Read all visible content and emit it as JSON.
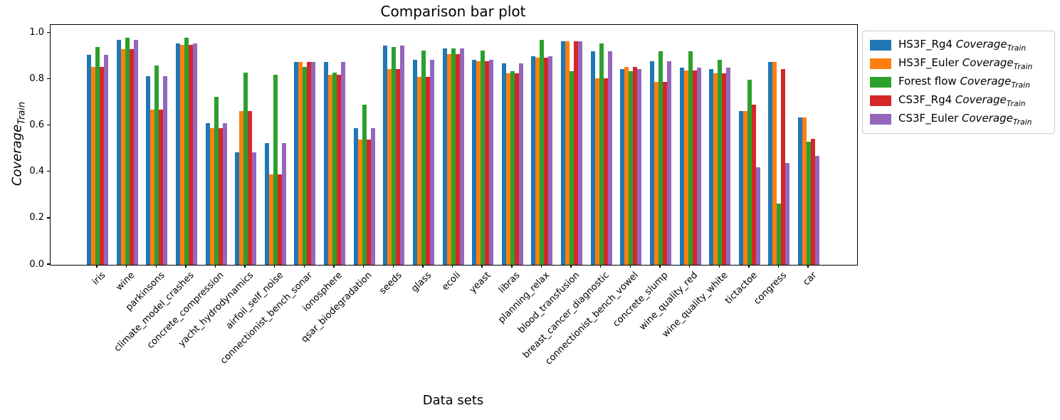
{
  "chart_data": {
    "type": "bar",
    "title": "Comparison bar plot",
    "xlabel": "Data sets",
    "ylabel": "Coverage_Train",
    "ylabel_parts": {
      "metric": "Coverage",
      "subscript": "Train"
    },
    "ylim": [
      0,
      1.035
    ],
    "yticks": [
      0.0,
      0.2,
      0.4,
      0.6,
      0.8,
      1.0
    ],
    "grid": false,
    "legend_position": "upper right, outside axes",
    "categories": [
      "iris",
      "wine",
      "parkinsons",
      "climate_model_crashes",
      "concrete_compression",
      "yacht_hydrodynamics",
      "airfoil_self_noise",
      "connectionist_bench_sonar",
      "ionosphere",
      "qsar_biodegradation",
      "seeds",
      "glass",
      "ecoli",
      "yeast",
      "libras",
      "planning_relax",
      "blood_transfusion",
      "breast_cancer_diagnostic",
      "connectionist_bench_vowel",
      "concrete_slump",
      "wine_quality_red",
      "wine_quality_white",
      "tictactoe",
      "congress",
      "car"
    ],
    "series": [
      {
        "name": "HS3F_Rg4",
        "metric": "Coverage",
        "subscript": "Train",
        "color": "#1f77b4",
        "values": [
          0.905,
          0.97,
          0.815,
          0.955,
          0.61,
          0.485,
          0.525,
          0.875,
          0.875,
          0.59,
          0.945,
          0.885,
          0.935,
          0.885,
          0.87,
          0.9,
          0.965,
          0.92,
          0.845,
          0.88,
          0.85,
          0.845,
          0.665,
          0.875,
          0.635
        ]
      },
      {
        "name": "HS3F_Euler",
        "metric": "Coverage",
        "subscript": "Train",
        "color": "#ff7f0e",
        "values": [
          0.855,
          0.93,
          0.67,
          0.95,
          0.59,
          0.665,
          0.39,
          0.875,
          0.82,
          0.54,
          0.845,
          0.81,
          0.91,
          0.88,
          0.825,
          0.895,
          0.965,
          0.805,
          0.855,
          0.79,
          0.84,
          0.825,
          0.665,
          0.875,
          0.635
        ]
      },
      {
        "name": "Forest flow",
        "metric": "Coverage",
        "subscript": "Train",
        "color": "#2ca02c",
        "values": [
          0.94,
          0.98,
          0.86,
          0.98,
          0.725,
          0.83,
          0.82,
          0.855,
          0.83,
          0.69,
          0.94,
          0.925,
          0.935,
          0.925,
          0.835,
          0.97,
          0.835,
          0.955,
          0.835,
          0.92,
          0.92,
          0.885,
          0.8,
          0.265,
          0.53
        ]
      },
      {
        "name": "CS3F_Rg4",
        "metric": "Coverage",
        "subscript": "Train",
        "color": "#d62728",
        "values": [
          0.855,
          0.93,
          0.67,
          0.95,
          0.59,
          0.665,
          0.39,
          0.875,
          0.82,
          0.54,
          0.845,
          0.81,
          0.91,
          0.88,
          0.825,
          0.895,
          0.965,
          0.805,
          0.855,
          0.79,
          0.84,
          0.825,
          0.69,
          0.845,
          0.545
        ]
      },
      {
        "name": "CS3F_Euler",
        "metric": "Coverage",
        "subscript": "Train",
        "color": "#9467bd",
        "values": [
          0.905,
          0.97,
          0.815,
          0.955,
          0.61,
          0.485,
          0.525,
          0.875,
          0.875,
          0.59,
          0.945,
          0.885,
          0.935,
          0.885,
          0.87,
          0.9,
          0.965,
          0.92,
          0.845,
          0.88,
          0.85,
          0.85,
          0.42,
          0.44,
          0.47
        ]
      }
    ]
  }
}
